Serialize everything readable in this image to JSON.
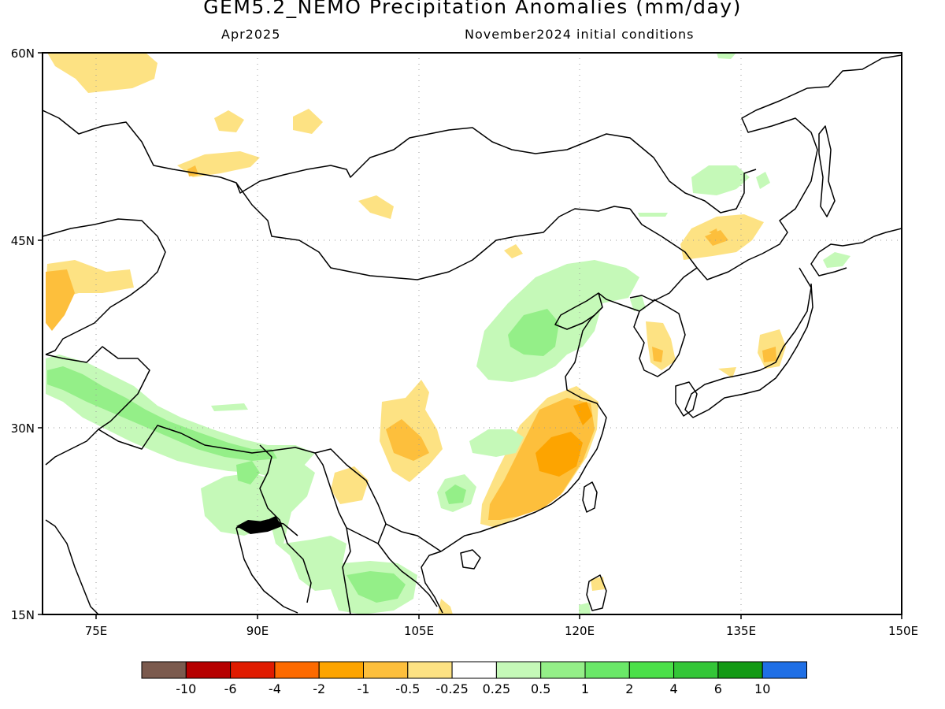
{
  "title": "GEM5.2_NEMO Precipitation Anomalies (mm/day)",
  "subtitle_left": "Apr2025",
  "subtitle_right": "November2024 initial conditions",
  "map": {
    "lon_range": [
      70,
      150
    ],
    "lat_range": [
      15,
      60
    ],
    "lon_ticks": [
      "75E",
      "90E",
      "105E",
      "120E",
      "135E",
      "150E"
    ],
    "lat_ticks": [
      "60N",
      "45N",
      "30N",
      "15N"
    ],
    "grid": "dotted"
  },
  "colorbar": {
    "colors": [
      "#7b5a4e",
      "#b60000",
      "#e01b00",
      "#fd6a00",
      "#fda400",
      "#fdbf3c",
      "#fde283",
      "#ffffff",
      "#c5f9b8",
      "#94ef88",
      "#6ae868",
      "#4be049",
      "#33c637",
      "#139a15",
      "#1f6fe6"
    ],
    "labels": [
      "-10",
      "-6",
      "-4",
      "-2",
      "-1",
      "-0.5",
      "-0.25",
      "0.25",
      "0.5",
      "1",
      "2",
      "4",
      "6",
      "10"
    ]
  },
  "colors": {
    "dry_light": "#fde283",
    "dry_medium": "#fdbf3c",
    "dry_strong": "#fda400",
    "wet_light": "#c5f9b8",
    "wet_medium": "#94ef88"
  }
}
